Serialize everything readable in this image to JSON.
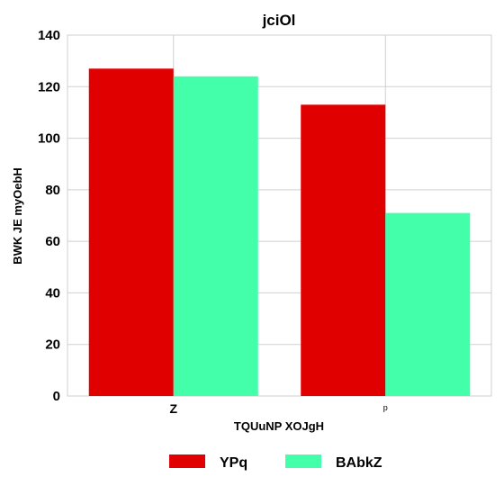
{
  "chart_data": {
    "type": "bar",
    "title": "jciOl",
    "xlabel": "TQUuNP XOJgH",
    "ylabel": "BWK JE myOebH",
    "categories": [
      "Z",
      "p"
    ],
    "series": [
      {
        "name": "YPq",
        "values": [
          127,
          113
        ],
        "color": "#e00000"
      },
      {
        "name": "BAbkZ",
        "values": [
          124,
          71
        ],
        "color": "#44ffaa"
      }
    ],
    "ylim": [
      0,
      140
    ],
    "yticks": [
      0,
      20,
      40,
      60,
      80,
      100,
      120,
      140
    ],
    "grid": true,
    "legend": "bottom"
  }
}
